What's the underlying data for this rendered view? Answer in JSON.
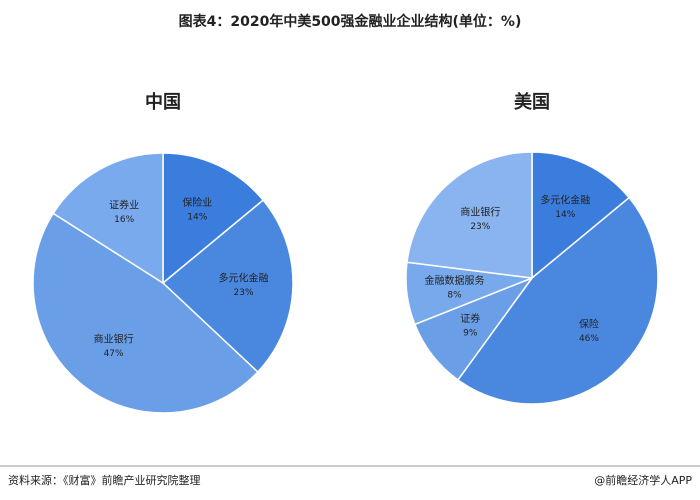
{
  "title": "图表4：2020年中美500强金融业企业结构(单位：%)",
  "chart_data": [
    {
      "type": "pie",
      "title": "中国",
      "categories": [
        "保险业",
        "多元化金融",
        "商业银行",
        "证券业"
      ],
      "values": [
        14,
        23,
        47,
        16
      ],
      "value_labels": [
        "14%",
        "23%",
        "47%",
        "16%"
      ],
      "colors": [
        "#3b7ddd",
        "#4a88e0",
        "#6a9fe8",
        "#7aaaee"
      ]
    },
    {
      "type": "pie",
      "title": "美国",
      "categories": [
        "多元化金融",
        "保险",
        "证券",
        "金融数据服务",
        "商业银行"
      ],
      "values": [
        14,
        46,
        9,
        8,
        23
      ],
      "value_labels": [
        "14%",
        "46%",
        "9%",
        "8%",
        "23%"
      ],
      "colors": [
        "#3b7ddd",
        "#4a88e0",
        "#6a9fe8",
        "#79a9ed",
        "#8ab4f0"
      ]
    }
  ],
  "source": "资料来源：《财富》前瞻产业研究院整理",
  "credit": "@前瞻经济学人APP"
}
